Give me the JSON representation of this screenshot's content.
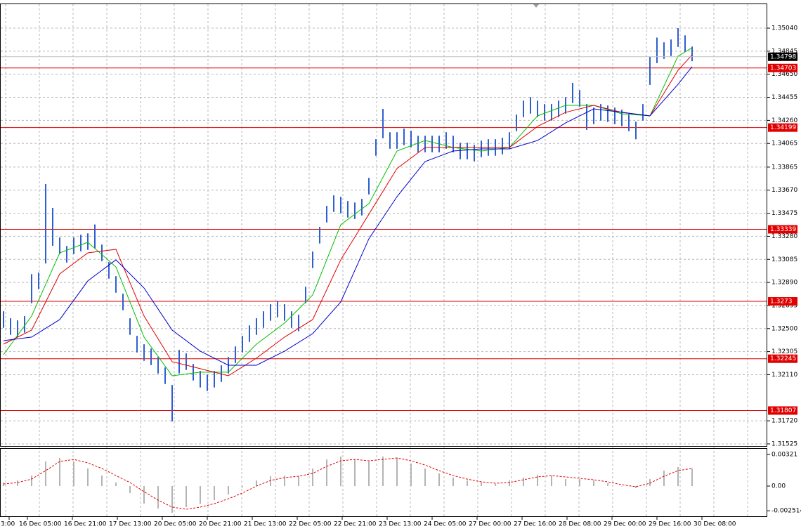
{
  "chart_data": [
    {
      "type": "ohlc",
      "color": "#2f5fcf",
      "xlabels": [
        "3:00",
        "16 Dec 05:00",
        "16 Dec 21:00",
        "17 Dec 13:00",
        "20 Dec 05:00",
        "20 Dec 21:00",
        "21 Dec 13:00",
        "22 Dec 05:00",
        "22 Dec 21:00",
        "23 Dec 13:00",
        "24 Dec 05:00",
        "27 Dec 00:00",
        "27 Dec 16:00",
        "28 Dec 08:00",
        "29 Dec 00:00",
        "29 Dec 16:00",
        "30 Dec 08:00"
      ],
      "high": [
        1.32646,
        1.32587,
        1.32569,
        1.32605,
        1.3296,
        1.32973,
        1.33722,
        1.3352,
        1.3327,
        1.33198,
        1.3327,
        1.33293,
        1.33305,
        1.3338,
        1.3321,
        1.33062,
        1.32943,
        1.32795,
        1.32587,
        1.32438,
        1.32367,
        1.32331,
        1.3226,
        1.32171,
        1.32023,
        1.3232,
        1.3229,
        1.32201,
        1.32142,
        1.32112,
        1.32142,
        1.32189,
        1.3226,
        1.32349,
        1.32438,
        1.32527,
        1.32587,
        1.32646,
        1.32706,
        1.32735,
        1.32706,
        1.32646,
        1.32617,
        1.32854,
        1.33151,
        1.33359,
        1.33537,
        1.33626,
        1.33614,
        1.33578,
        1.33566,
        1.33596,
        1.33774,
        1.34101,
        1.34357,
        1.3416,
        1.3416,
        1.3419,
        1.34172,
        1.3413,
        1.3413,
        1.3413,
        1.3413,
        1.3416,
        1.3413,
        1.34071,
        1.34071,
        1.34053,
        1.34089,
        1.34101,
        1.34101,
        1.34113,
        1.3416,
        1.34309,
        1.34427,
        1.34457,
        1.34427,
        1.34398,
        1.34398,
        1.34427,
        1.34457,
        1.34577,
        1.34516,
        1.34398,
        1.34368,
        1.34398,
        1.34386,
        1.34368,
        1.3435,
        1.34309,
        1.34249,
        1.34398,
        1.348,
        1.3496,
        1.3492,
        1.34944,
        1.3504,
        1.34979,
        1.34884
      ],
      "low": [
        1.32506,
        1.32447,
        1.32429,
        1.32465,
        1.32714,
        1.32833,
        1.3305,
        1.332,
        1.3313,
        1.33058,
        1.3313,
        1.33153,
        1.33165,
        1.33177,
        1.3307,
        1.32922,
        1.32803,
        1.32655,
        1.32447,
        1.32298,
        1.32227,
        1.32191,
        1.3212,
        1.32031,
        1.31715,
        1.3212,
        1.3215,
        1.32061,
        1.32002,
        1.31972,
        1.32002,
        1.32049,
        1.3212,
        1.32209,
        1.32298,
        1.32387,
        1.32447,
        1.32506,
        1.32566,
        1.32595,
        1.32566,
        1.32506,
        1.32477,
        1.32714,
        1.33011,
        1.33219,
        1.33397,
        1.33486,
        1.33474,
        1.33438,
        1.33426,
        1.33456,
        1.33634,
        1.33961,
        1.34109,
        1.3402,
        1.3402,
        1.3405,
        1.34032,
        1.3399,
        1.3399,
        1.3399,
        1.3399,
        1.3402,
        1.3399,
        1.33931,
        1.33931,
        1.33913,
        1.33949,
        1.33961,
        1.33961,
        1.33973,
        1.3402,
        1.34169,
        1.34287,
        1.34317,
        1.34287,
        1.34258,
        1.34258,
        1.34287,
        1.34317,
        1.34406,
        1.34376,
        1.3418,
        1.34228,
        1.34258,
        1.34246,
        1.34228,
        1.3421,
        1.34169,
        1.341,
        1.34258,
        1.3456,
        1.34744,
        1.3478,
        1.34804,
        1.34881,
        1.34839,
        1.3476
      ],
      "series": [
        {
          "color": "#00c000",
          "x": [
            0,
            4,
            8,
            12,
            16,
            20,
            24,
            28,
            32,
            36,
            40,
            44,
            48,
            52,
            56,
            60,
            64,
            68,
            72,
            76,
            80,
            84,
            88,
            92,
            96,
            98
          ],
          "values": [
            1.32279,
            1.32606,
            1.3314,
            1.33229,
            1.33021,
            1.32428,
            1.32101,
            1.32131,
            1.32131,
            1.32368,
            1.32547,
            1.32784,
            1.33378,
            1.33556,
            1.34001,
            1.3409,
            1.34031,
            1.34001,
            1.34031,
            1.34298,
            1.34387,
            1.34387,
            1.34316,
            1.34298,
            1.34803,
            1.34874
          ]
        },
        {
          "color": "#e00000",
          "x": [
            0,
            4,
            8,
            12,
            16,
            20,
            24,
            28,
            32,
            36,
            40,
            44,
            48,
            52,
            56,
            60,
            64,
            68,
            72,
            76,
            80,
            84,
            88,
            92,
            96,
            98
          ],
          "values": [
            1.32368,
            1.32487,
            1.32962,
            1.3314,
            1.3317,
            1.32606,
            1.3222,
            1.32161,
            1.32101,
            1.3225,
            1.32428,
            1.32576,
            1.33081,
            1.33467,
            1.33853,
            1.34031,
            1.34031,
            1.34031,
            1.34031,
            1.34209,
            1.34328,
            1.34387,
            1.34328,
            1.34298,
            1.34684,
            1.34814
          ]
        },
        {
          "color": "#0000c8",
          "x": [
            0,
            4,
            8,
            12,
            16,
            20,
            24,
            28,
            32,
            36,
            40,
            44,
            48,
            52,
            56,
            60,
            64,
            68,
            72,
            76,
            80,
            84,
            88,
            92,
            96,
            98
          ],
          "values": [
            1.32398,
            1.32428,
            1.32576,
            1.32903,
            1.33081,
            1.32843,
            1.32487,
            1.32309,
            1.3219,
            1.3219,
            1.32309,
            1.32457,
            1.32725,
            1.33259,
            1.33615,
            1.33912,
            1.34001,
            1.34019,
            1.34019,
            1.3409,
            1.34239,
            1.34357,
            1.34328,
            1.34298,
            1.34565,
            1.34714
          ]
        }
      ],
      "ylim": [
        1.31507,
        1.35248
      ],
      "yticks": [
        {
          "value": 1.3504,
          "label": "1.35040"
        },
        1.34845,
        {
          "value": 1.3465,
          "label": "1.34650"
        },
        1.34455,
        {
          "value": 1.3426,
          "label": "1.34260"
        },
        1.34065,
        1.33865,
        {
          "value": 1.3367,
          "label": "1.33670"
        },
        1.33475,
        {
          "value": 1.3328,
          "label": "1.33280"
        },
        1.33085,
        {
          "value": 1.3289,
          "label": "1.32890"
        },
        1.32695,
        {
          "value": 1.325,
          "label": "1.32500"
        },
        1.32305,
        {
          "value": 1.3211,
          "label": "1.32110"
        },
        {
          "value": 1.3172,
          "label": "1.31720"
        },
        1.31525
      ],
      "levels": [
        1.34703,
        1.34199,
        1.33339,
        1.3273,
        1.32245,
        1.31807
      ],
      "level_color": "#e00000",
      "price": 1.34798,
      "grid": true
    },
    {
      "type": "macd",
      "color": "#b4b4b4",
      "signal_color": "#e00000",
      "x": [
        0,
        2,
        4,
        6,
        8,
        10,
        12,
        14,
        16,
        18,
        20,
        22,
        24,
        26,
        28,
        30,
        32,
        34,
        36,
        38,
        40,
        42,
        44,
        46,
        48,
        50,
        52,
        54,
        56,
        58,
        60,
        62,
        64,
        66,
        68,
        70,
        72,
        74,
        76,
        78,
        80,
        82,
        84,
        86,
        88,
        90,
        92,
        94,
        96,
        98
      ],
      "histogram": [
        0.00036,
        0.00057,
        0.00107,
        0.0025,
        0.00286,
        0.0025,
        0.00179,
        0.00107,
        0.00036,
        -0.00071,
        -0.00179,
        -0.00229,
        -0.00271,
        -0.00214,
        -0.00179,
        -0.00143,
        -0.00086,
        -0.00014,
        0.00057,
        0.001,
        0.00107,
        0.001,
        0.00179,
        0.00271,
        0.003,
        0.00271,
        0.0025,
        0.003,
        0.00286,
        0.00229,
        0.00179,
        0.00129,
        0.00086,
        0.00057,
        0.00036,
        0.00021,
        0.00057,
        0.00086,
        0.00114,
        0.00107,
        0.00071,
        0.00071,
        0.00057,
        0.00029,
        0,
        -0.00021,
        0.00071,
        0.00157,
        0.00193,
        0.00179
      ],
      "signal": [
        0.00021,
        0.00036,
        0.00071,
        0.00157,
        0.0025,
        0.00271,
        0.00236,
        0.00179,
        0.00107,
        0.00036,
        -0.00057,
        -0.00143,
        -0.00214,
        -0.00236,
        -0.00214,
        -0.00179,
        -0.00129,
        -0.00071,
        0,
        0.00057,
        0.00086,
        0.001,
        0.00129,
        0.002,
        0.00257,
        0.00271,
        0.00257,
        0.00271,
        0.00286,
        0.00257,
        0.00214,
        0.00157,
        0.00107,
        0.00071,
        0.00043,
        0.00029,
        0.00036,
        0.00064,
        0.00093,
        0.00107,
        0.00093,
        0.00079,
        0.00064,
        0.00043,
        0.00014,
        -7e-05,
        0.00029,
        0.001,
        0.00157,
        0.00179
      ],
      "ylim": [
        -0.00307,
        0.00386
      ],
      "yticks": [
        0.00321,
        {
          "value": 0,
          "label": "0.00"
        },
        -0.002514
      ]
    }
  ]
}
